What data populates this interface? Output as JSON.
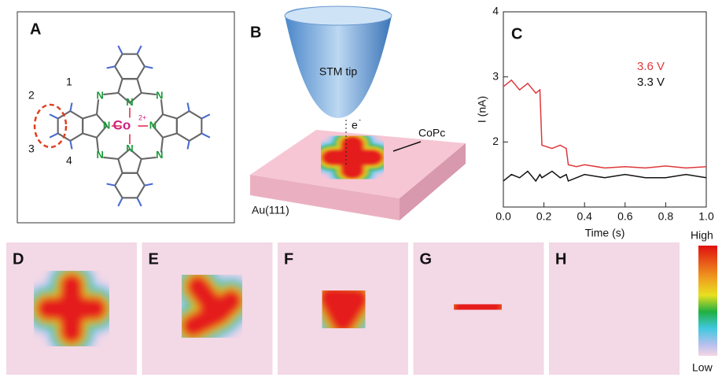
{
  "panels": {
    "a": "A",
    "b": "B",
    "c": "C",
    "d": "D",
    "e": "E",
    "f": "F",
    "g": "G",
    "h": "H"
  },
  "molecule": {
    "center": "Co",
    "charge": "2+",
    "nitrogen": "N",
    "positions": [
      "1",
      "2",
      "3",
      "4"
    ]
  },
  "stm": {
    "tip": "STM tip",
    "electron": "e",
    "electron_charge": "-",
    "molecule": "CoPc",
    "surface": "Au(111)"
  },
  "colorbar": {
    "high": "High",
    "low": "Low"
  },
  "chart_data": {
    "type": "line",
    "x_label": "Time (s)",
    "y_label": "I (nA)",
    "x": [
      0,
      0.04,
      0.08,
      0.12,
      0.16,
      0.18,
      0.19,
      0.24,
      0.28,
      0.31,
      0.32,
      0.36,
      0.4,
      0.5,
      0.6,
      0.7,
      0.8,
      0.9,
      1.0
    ],
    "series": [
      {
        "name": "3.6 V",
        "color": "#e0383a",
        "values": [
          2.85,
          2.95,
          2.8,
          2.9,
          2.75,
          2.8,
          1.95,
          1.9,
          1.95,
          1.9,
          1.65,
          1.62,
          1.65,
          1.6,
          1.62,
          1.6,
          1.63,
          1.6,
          1.62
        ]
      },
      {
        "name": "3.3 V",
        "color": "#111111",
        "values": [
          1.4,
          1.5,
          1.45,
          1.55,
          1.4,
          1.5,
          1.45,
          1.55,
          1.45,
          1.5,
          1.4,
          1.45,
          1.5,
          1.45,
          1.5,
          1.45,
          1.45,
          1.5,
          1.45
        ]
      }
    ],
    "xlim": [
      0,
      1
    ],
    "xticks": [
      {
        "value": 0,
        "label": "0.0"
      },
      0.2,
      0.4,
      0.6,
      0.8,
      {
        "value": 1,
        "label": "1.0"
      }
    ],
    "ylim": [
      1,
      4
    ],
    "yticks": [
      2,
      3,
      4
    ]
  }
}
